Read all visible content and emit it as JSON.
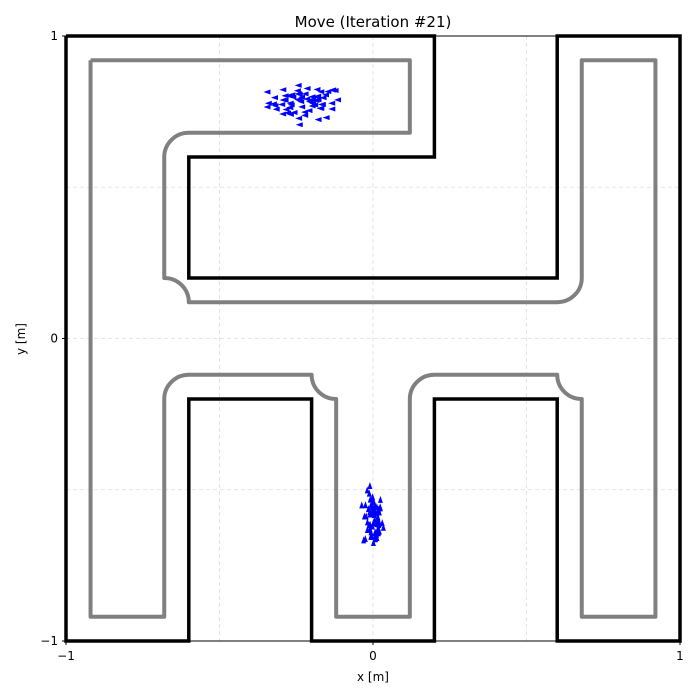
{
  "chart_data": {
    "type": "scatter",
    "title": "Move (Iteration #21)",
    "xlabel": "x [m]",
    "ylabel": "y [m]",
    "xlim": [
      -1,
      1
    ],
    "ylim": [
      -1,
      1
    ],
    "xticks": [
      {
        "value": -1,
        "label": "−1"
      },
      {
        "value": 0,
        "label": "0"
      },
      {
        "value": 1,
        "label": "1"
      }
    ],
    "yticks": [
      {
        "value": -1,
        "label": "−1"
      },
      {
        "value": 0,
        "label": "0"
      },
      {
        "value": 1,
        "label": "1"
      }
    ],
    "grid": true,
    "grid_x": [
      -0.5,
      0,
      0.5
    ],
    "grid_y": [
      -0.5,
      0,
      0.5
    ],
    "colors": {
      "walls": "#000000",
      "boundary": "#808080",
      "particles": "#0000ff",
      "grid": "#dddddd"
    },
    "walls": [
      {
        "points": [
          [
            -1,
            1
          ],
          [
            -1,
            -1
          ],
          [
            -0.6,
            -1
          ],
          [
            -0.6,
            -0.2
          ],
          [
            -0.2,
            -0.2
          ],
          [
            -0.2,
            -1
          ],
          [
            0.2,
            -1
          ],
          [
            0.2,
            -0.2
          ],
          [
            0.6,
            -0.2
          ],
          [
            0.6,
            -1
          ],
          [
            1,
            -1
          ],
          [
            1,
            1
          ],
          [
            0.6,
            1
          ],
          [
            0.6,
            0.2
          ],
          [
            -0.6,
            0.2
          ],
          [
            -0.6,
            0.6
          ],
          [
            0.2,
            0.6
          ],
          [
            0.2,
            1
          ],
          [
            -1,
            1
          ]
        ]
      }
    ],
    "boundaries": [
      {
        "points": [
          [
            -0.92,
            0.92
          ],
          [
            0.12,
            0.92
          ],
          [
            0.12,
            0.68
          ],
          [
            -0.6,
            0.68
          ],
          {
            "r": 0.08
          },
          [
            -0.68,
            0.6
          ],
          [
            -0.68,
            0.2
          ],
          {
            "r": 0.08
          },
          [
            -0.6,
            0.12
          ],
          [
            0.6,
            0.12
          ],
          {
            "r": 0.08
          },
          [
            0.68,
            0.2
          ],
          [
            0.68,
            0.92
          ],
          [
            0.92,
            0.92
          ],
          [
            0.92,
            -0.92
          ],
          [
            0.68,
            -0.92
          ],
          [
            0.68,
            -0.2
          ],
          {
            "r": 0.08
          },
          [
            0.6,
            -0.12
          ],
          [
            0.2,
            -0.12
          ],
          {
            "r": 0.08
          },
          [
            0.12,
            -0.2
          ],
          [
            0.12,
            -0.92
          ],
          [
            -0.12,
            -0.92
          ],
          [
            -0.12,
            -0.2
          ],
          {
            "r": 0.08
          },
          [
            -0.2,
            -0.12
          ],
          [
            -0.6,
            -0.12
          ],
          {
            "r": 0.08
          },
          [
            -0.68,
            -0.2
          ],
          [
            -0.68,
            -0.92
          ],
          [
            -0.92,
            -0.92
          ],
          [
            -0.92,
            0.92
          ]
        ]
      }
    ],
    "particle_clusters": [
      {
        "name": "",
        "heading": "left",
        "center": [
          -0.22,
          0.78
        ],
        "spread": [
          0.06,
          0.028
        ],
        "count": 70
      },
      {
        "name": "",
        "heading": "up",
        "center": [
          0.0,
          -0.6
        ],
        "spread": [
          0.016,
          0.045
        ],
        "count": 70
      }
    ]
  }
}
